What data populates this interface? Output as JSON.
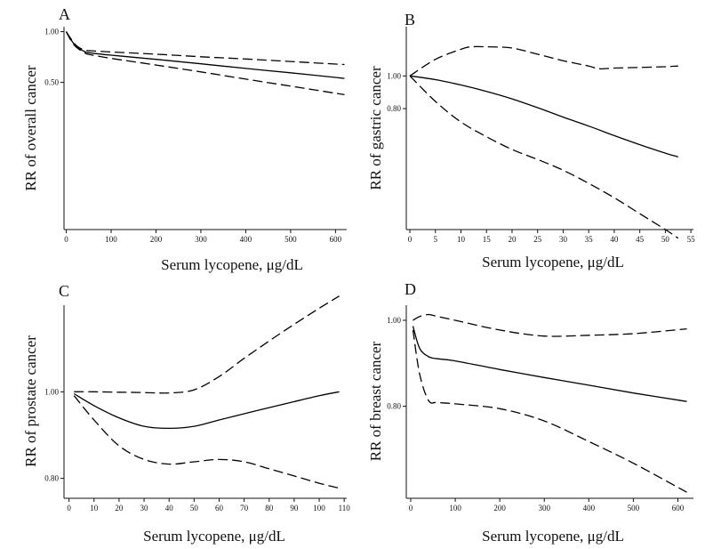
{
  "chart_data": [
    {
      "panel": "A",
      "type": "line",
      "xlabel": "Serum lycopene, μg/dL",
      "ylabel": "RR of overall cancer",
      "xticks": [
        0,
        100,
        200,
        300,
        400,
        500,
        600
      ],
      "yticks": [
        1.0,
        0.5
      ],
      "ytick_labels": [
        "1.00",
        "0.50"
      ],
      "xlim": [
        -5,
        625
      ],
      "ylim": [
        0.067,
        1.07
      ],
      "yscale": "log",
      "series": [
        {
          "style": "solid",
          "x": [
            0,
            10,
            20,
            30,
            40,
            50,
            100,
            200,
            300,
            400,
            500,
            620
          ],
          "y": [
            1.0,
            0.9,
            0.83,
            0.79,
            0.765,
            0.75,
            0.725,
            0.685,
            0.645,
            0.605,
            0.57,
            0.528
          ]
        },
        {
          "style": "dashed",
          "x": [
            0,
            10,
            20,
            30,
            40,
            50,
            100,
            200,
            300,
            400,
            500,
            620
          ],
          "y": [
            1.0,
            0.91,
            0.84,
            0.8,
            0.78,
            0.772,
            0.758,
            0.735,
            0.71,
            0.688,
            0.665,
            0.638
          ]
        },
        {
          "style": "dashed",
          "x": [
            0,
            10,
            20,
            30,
            40,
            50,
            100,
            200,
            300,
            400,
            500,
            620
          ],
          "y": [
            1.0,
            0.89,
            0.82,
            0.78,
            0.752,
            0.733,
            0.694,
            0.634,
            0.577,
            0.523,
            0.475,
            0.423
          ]
        }
      ]
    },
    {
      "panel": "B",
      "type": "line",
      "xlabel": "Serum lycopene, μg/dL",
      "ylabel": "RR of gastric cancer",
      "xticks": [
        0,
        5,
        10,
        15,
        20,
        25,
        30,
        35,
        40,
        45,
        50,
        55
      ],
      "yticks": [
        1.0,
        0.8
      ],
      "ytick_labels": [
        "1.00",
        "0.80"
      ],
      "xlim": [
        -0.7,
        55.5
      ],
      "ylim": [
        0.35,
        1.4
      ],
      "yscale": "log",
      "series": [
        {
          "style": "solid",
          "x": [
            0,
            5,
            10,
            15,
            20,
            25,
            30,
            35,
            40,
            45,
            50,
            52.5
          ],
          "y": [
            1.0,
            0.975,
            0.94,
            0.9,
            0.855,
            0.805,
            0.755,
            0.71,
            0.665,
            0.625,
            0.59,
            0.575
          ]
        },
        {
          "style": "dashed",
          "x": [
            0,
            5,
            10,
            12,
            15,
            20,
            25,
            30,
            35,
            37,
            40,
            45,
            50,
            52.5
          ],
          "y": [
            1.0,
            1.12,
            1.2,
            1.22,
            1.22,
            1.21,
            1.16,
            1.11,
            1.07,
            1.05,
            1.055,
            1.06,
            1.065,
            1.07
          ]
        },
        {
          "style": "dashed",
          "x": [
            0,
            5,
            10,
            15,
            20,
            25,
            30,
            35,
            40,
            45,
            50,
            52.5
          ],
          "y": [
            1.0,
            0.84,
            0.73,
            0.66,
            0.605,
            0.565,
            0.525,
            0.48,
            0.435,
            0.39,
            0.35,
            0.33
          ]
        }
      ]
    },
    {
      "panel": "C",
      "type": "line",
      "xlabel": "Serum lycopene, μg/dL",
      "ylabel": "RR of prostate cancer",
      "xticks": [
        0,
        10,
        20,
        30,
        40,
        50,
        60,
        70,
        80,
        90,
        100,
        110
      ],
      "yticks": [
        1.0,
        0.8
      ],
      "ytick_labels": [
        "1.00",
        "0.80"
      ],
      "xlim": [
        -2,
        111
      ],
      "ylim": [
        0.76,
        1.25
      ],
      "yscale": "log",
      "series": [
        {
          "style": "solid",
          "x": [
            2,
            10,
            20,
            30,
            40,
            50,
            60,
            70,
            80,
            90,
            100,
            108
          ],
          "y": [
            0.995,
            0.965,
            0.935,
            0.915,
            0.91,
            0.915,
            0.93,
            0.945,
            0.96,
            0.975,
            0.99,
            1.0
          ]
        },
        {
          "style": "dashed",
          "x": [
            2,
            10,
            20,
            30,
            40,
            50,
            60,
            70,
            80,
            90,
            100,
            108
          ],
          "y": [
            1.0,
            1.0,
            0.999,
            0.998,
            0.997,
            1.005,
            1.04,
            1.09,
            1.14,
            1.19,
            1.24,
            1.28
          ]
        },
        {
          "style": "dashed",
          "x": [
            2,
            10,
            20,
            30,
            40,
            50,
            60,
            70,
            80,
            90,
            100,
            108
          ],
          "y": [
            0.99,
            0.93,
            0.87,
            0.84,
            0.83,
            0.835,
            0.84,
            0.835,
            0.82,
            0.805,
            0.79,
            0.78
          ]
        }
      ]
    },
    {
      "panel": "D",
      "type": "line",
      "xlabel": "Serum lycopene, μg/dL",
      "ylabel": "RR of breast cancer",
      "xticks": [
        0,
        100,
        200,
        300,
        400,
        500,
        600
      ],
      "yticks": [
        1.0,
        0.8
      ],
      "ytick_labels": [
        "1.00",
        "0.80"
      ],
      "xlim": [
        -10,
        635
      ],
      "ylim": [
        0.63,
        1.04
      ],
      "yscale": "log",
      "series": [
        {
          "style": "solid",
          "x": [
            5,
            20,
            40,
            60,
            100,
            200,
            300,
            400,
            500,
            620
          ],
          "y": [
            0.985,
            0.93,
            0.91,
            0.905,
            0.9,
            0.88,
            0.862,
            0.845,
            0.828,
            0.81
          ]
        },
        {
          "style": "dashed",
          "x": [
            5,
            20,
            40,
            60,
            100,
            200,
            300,
            400,
            500,
            620
          ],
          "y": [
            1.0,
            1.01,
            1.015,
            1.01,
            1.0,
            0.975,
            0.96,
            0.962,
            0.966,
            0.978
          ]
        },
        {
          "style": "dashed",
          "x": [
            5,
            20,
            40,
            60,
            100,
            200,
            300,
            400,
            500,
            620
          ],
          "y": [
            0.975,
            0.87,
            0.812,
            0.808,
            0.805,
            0.795,
            0.77,
            0.73,
            0.69,
            0.64
          ]
        }
      ]
    }
  ]
}
